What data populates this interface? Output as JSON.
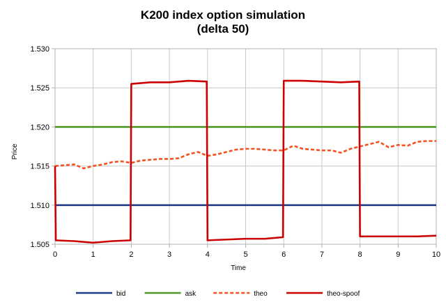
{
  "chart_data": {
    "type": "line",
    "title": "K200 index option simulation",
    "subtitle": "(delta 50)",
    "xlabel": "Time",
    "ylabel": "Price",
    "xlim": [
      0,
      10
    ],
    "ylim": [
      1.505,
      1.53
    ],
    "xticks": [
      "0",
      "1",
      "2",
      "3",
      "4",
      "5",
      "6",
      "7",
      "8",
      "9",
      "10"
    ],
    "yticks": [
      "1.505",
      "1.510",
      "1.515",
      "1.520",
      "1.525",
      "1.530"
    ],
    "grid": true,
    "legend_position": "bottom",
    "series": [
      {
        "name": "bid",
        "color": "#1f3c88",
        "style": "solid",
        "points": [
          [
            0,
            1.51
          ],
          [
            10,
            1.51
          ]
        ]
      },
      {
        "name": "ask",
        "color": "#4f9a2a",
        "style": "solid",
        "points": [
          [
            0,
            1.52
          ],
          [
            10,
            1.52
          ]
        ]
      },
      {
        "name": "theo",
        "color": "#f4511e",
        "style": "dashed",
        "points": [
          [
            0,
            1.515
          ],
          [
            0.25,
            1.5151
          ],
          [
            0.5,
            1.5152
          ],
          [
            0.75,
            1.5147
          ],
          [
            1,
            1.515
          ],
          [
            1.25,
            1.5152
          ],
          [
            1.5,
            1.5155
          ],
          [
            1.75,
            1.5156
          ],
          [
            2,
            1.5154
          ],
          [
            2.25,
            1.5157
          ],
          [
            2.5,
            1.5158
          ],
          [
            2.75,
            1.5159
          ],
          [
            3,
            1.5159
          ],
          [
            3.25,
            1.516
          ],
          [
            3.5,
            1.5165
          ],
          [
            3.75,
            1.5168
          ],
          [
            4,
            1.5163
          ],
          [
            4.25,
            1.5165
          ],
          [
            4.5,
            1.5168
          ],
          [
            4.75,
            1.5171
          ],
          [
            5,
            1.5172
          ],
          [
            5.25,
            1.5172
          ],
          [
            5.5,
            1.5171
          ],
          [
            5.75,
            1.517
          ],
          [
            6,
            1.517
          ],
          [
            6.25,
            1.5176
          ],
          [
            6.5,
            1.5172
          ],
          [
            6.75,
            1.5171
          ],
          [
            7,
            1.517
          ],
          [
            7.25,
            1.517
          ],
          [
            7.5,
            1.5167
          ],
          [
            7.75,
            1.5172
          ],
          [
            8,
            1.5175
          ],
          [
            8.25,
            1.5178
          ],
          [
            8.5,
            1.5181
          ],
          [
            8.75,
            1.5174
          ],
          [
            9,
            1.5177
          ],
          [
            9.25,
            1.5176
          ],
          [
            9.5,
            1.5181
          ],
          [
            9.75,
            1.5182
          ],
          [
            10,
            1.5182
          ]
        ]
      },
      {
        "name": "theo-spoof",
        "color": "#cc0000",
        "style": "solid",
        "points": [
          [
            0,
            1.515
          ],
          [
            0.02,
            1.5055
          ],
          [
            0.5,
            1.5054
          ],
          [
            1,
            1.5052
          ],
          [
            1.5,
            1.5054
          ],
          [
            1.98,
            1.5055
          ],
          [
            2,
            1.5255
          ],
          [
            2.5,
            1.5257
          ],
          [
            3,
            1.5257
          ],
          [
            3.5,
            1.5259
          ],
          [
            3.98,
            1.5258
          ],
          [
            4,
            1.5055
          ],
          [
            4.5,
            1.5056
          ],
          [
            5,
            1.5057
          ],
          [
            5.5,
            1.5057
          ],
          [
            5.98,
            1.5059
          ],
          [
            6,
            1.5259
          ],
          [
            6.5,
            1.5259
          ],
          [
            7,
            1.5258
          ],
          [
            7.5,
            1.5257
          ],
          [
            7.98,
            1.5258
          ],
          [
            8,
            1.506
          ],
          [
            8.5,
            1.506
          ],
          [
            9,
            1.506
          ],
          [
            9.5,
            1.506
          ],
          [
            10,
            1.5061
          ]
        ]
      }
    ]
  }
}
